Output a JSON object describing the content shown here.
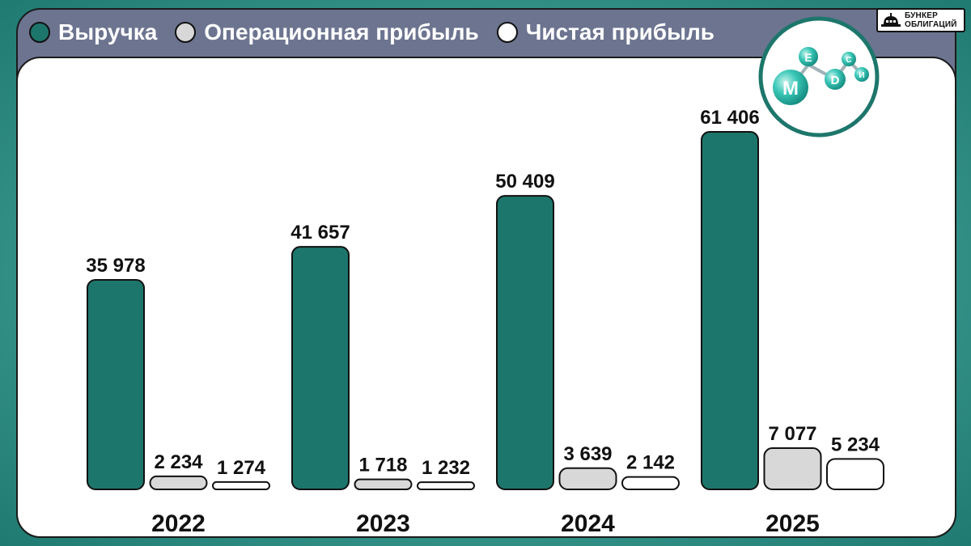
{
  "legend": [
    {
      "label": "Выручка",
      "color": "#1d766b"
    },
    {
      "label": "Операционная прибыль",
      "color": "#d8d8d8"
    },
    {
      "label": "Чистая прибыль",
      "color": "#ffffff"
    }
  ],
  "brand": {
    "line1": "БУНКЕР",
    "line2": "ОБЛИГАЦИЙ",
    "icon": "bunker-icon"
  },
  "company_logo": {
    "letters": [
      "М",
      "Е",
      "D",
      "С",
      "И"
    ],
    "icon": "medsi-molecule-logo"
  },
  "chart_data": {
    "type": "bar",
    "categories": [
      "2022",
      "2023",
      "2024",
      "2025"
    ],
    "series": [
      {
        "name": "Выручка",
        "color": "#1d766b",
        "values": [
          35978,
          41657,
          50409,
          61406
        ],
        "labels": [
          "35 978",
          "41 657",
          "50 409",
          "61 406"
        ]
      },
      {
        "name": "Операционная прибыль",
        "color": "#d8d8d8",
        "values": [
          2234,
          1718,
          3639,
          7077
        ],
        "labels": [
          "2 234",
          "1 718",
          "3 639",
          "7 077"
        ]
      },
      {
        "name": "Чистая прибыль",
        "color": "#ffffff",
        "values": [
          1274,
          1232,
          2142,
          5234
        ],
        "labels": [
          "1 274",
          "1 232",
          "2 142",
          "5 234"
        ]
      }
    ],
    "title": "",
    "xlabel": "",
    "ylabel": "",
    "ylim": [
      0,
      61406
    ],
    "grid": false,
    "legend_position": "top-left"
  }
}
